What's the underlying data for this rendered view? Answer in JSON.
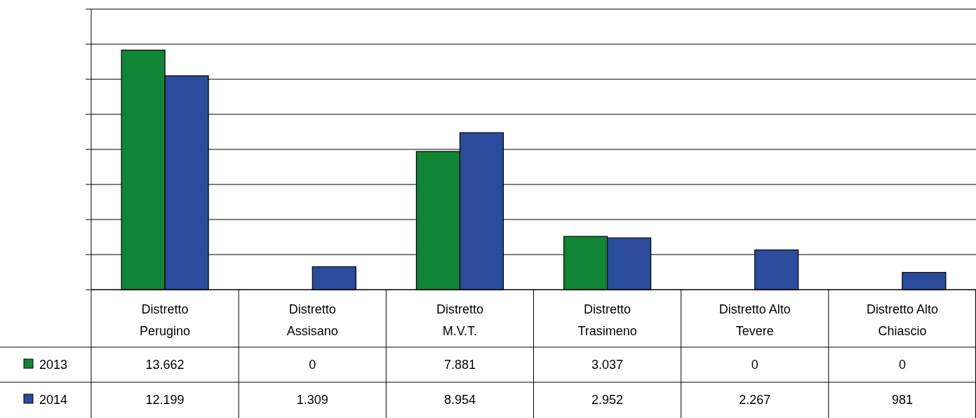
{
  "chart_data": {
    "type": "bar",
    "categories": [
      "Distretto Perugino",
      "Distretto Assisano",
      "Distretto M.V.T.",
      "Distretto Trasimeno",
      "Distretto Alto Tevere",
      "Distretto Alto Chiascio"
    ],
    "series": [
      {
        "name": "2013",
        "color": "#108536",
        "values": [
          13662,
          0,
          7881,
          3037,
          0,
          0
        ],
        "value_labels": [
          "13.662",
          "0",
          "7.881",
          "3.037",
          "0",
          "0"
        ]
      },
      {
        "name": "2014",
        "color": "#2b4c9c",
        "values": [
          12199,
          1309,
          8954,
          2952,
          2267,
          981
        ],
        "value_labels": [
          "12.199",
          "1.309",
          "8.954",
          "2.952",
          "2.267",
          "981"
        ]
      }
    ],
    "ylim": [
      0,
      16000
    ],
    "yticks": [
      {
        "value": 0,
        "label": null
      },
      {
        "value": 2000,
        "label": null
      },
      {
        "value": 4000,
        "label": null
      },
      {
        "value": 6000,
        "label": null
      },
      {
        "value": 8000,
        "label": null
      },
      {
        "value": 10000,
        "label": null
      },
      {
        "value": 12000,
        "label": null
      },
      {
        "value": 14000,
        "label": null
      },
      {
        "value": 16000,
        "label": null
      }
    ],
    "grid": "y",
    "legend": "left"
  }
}
